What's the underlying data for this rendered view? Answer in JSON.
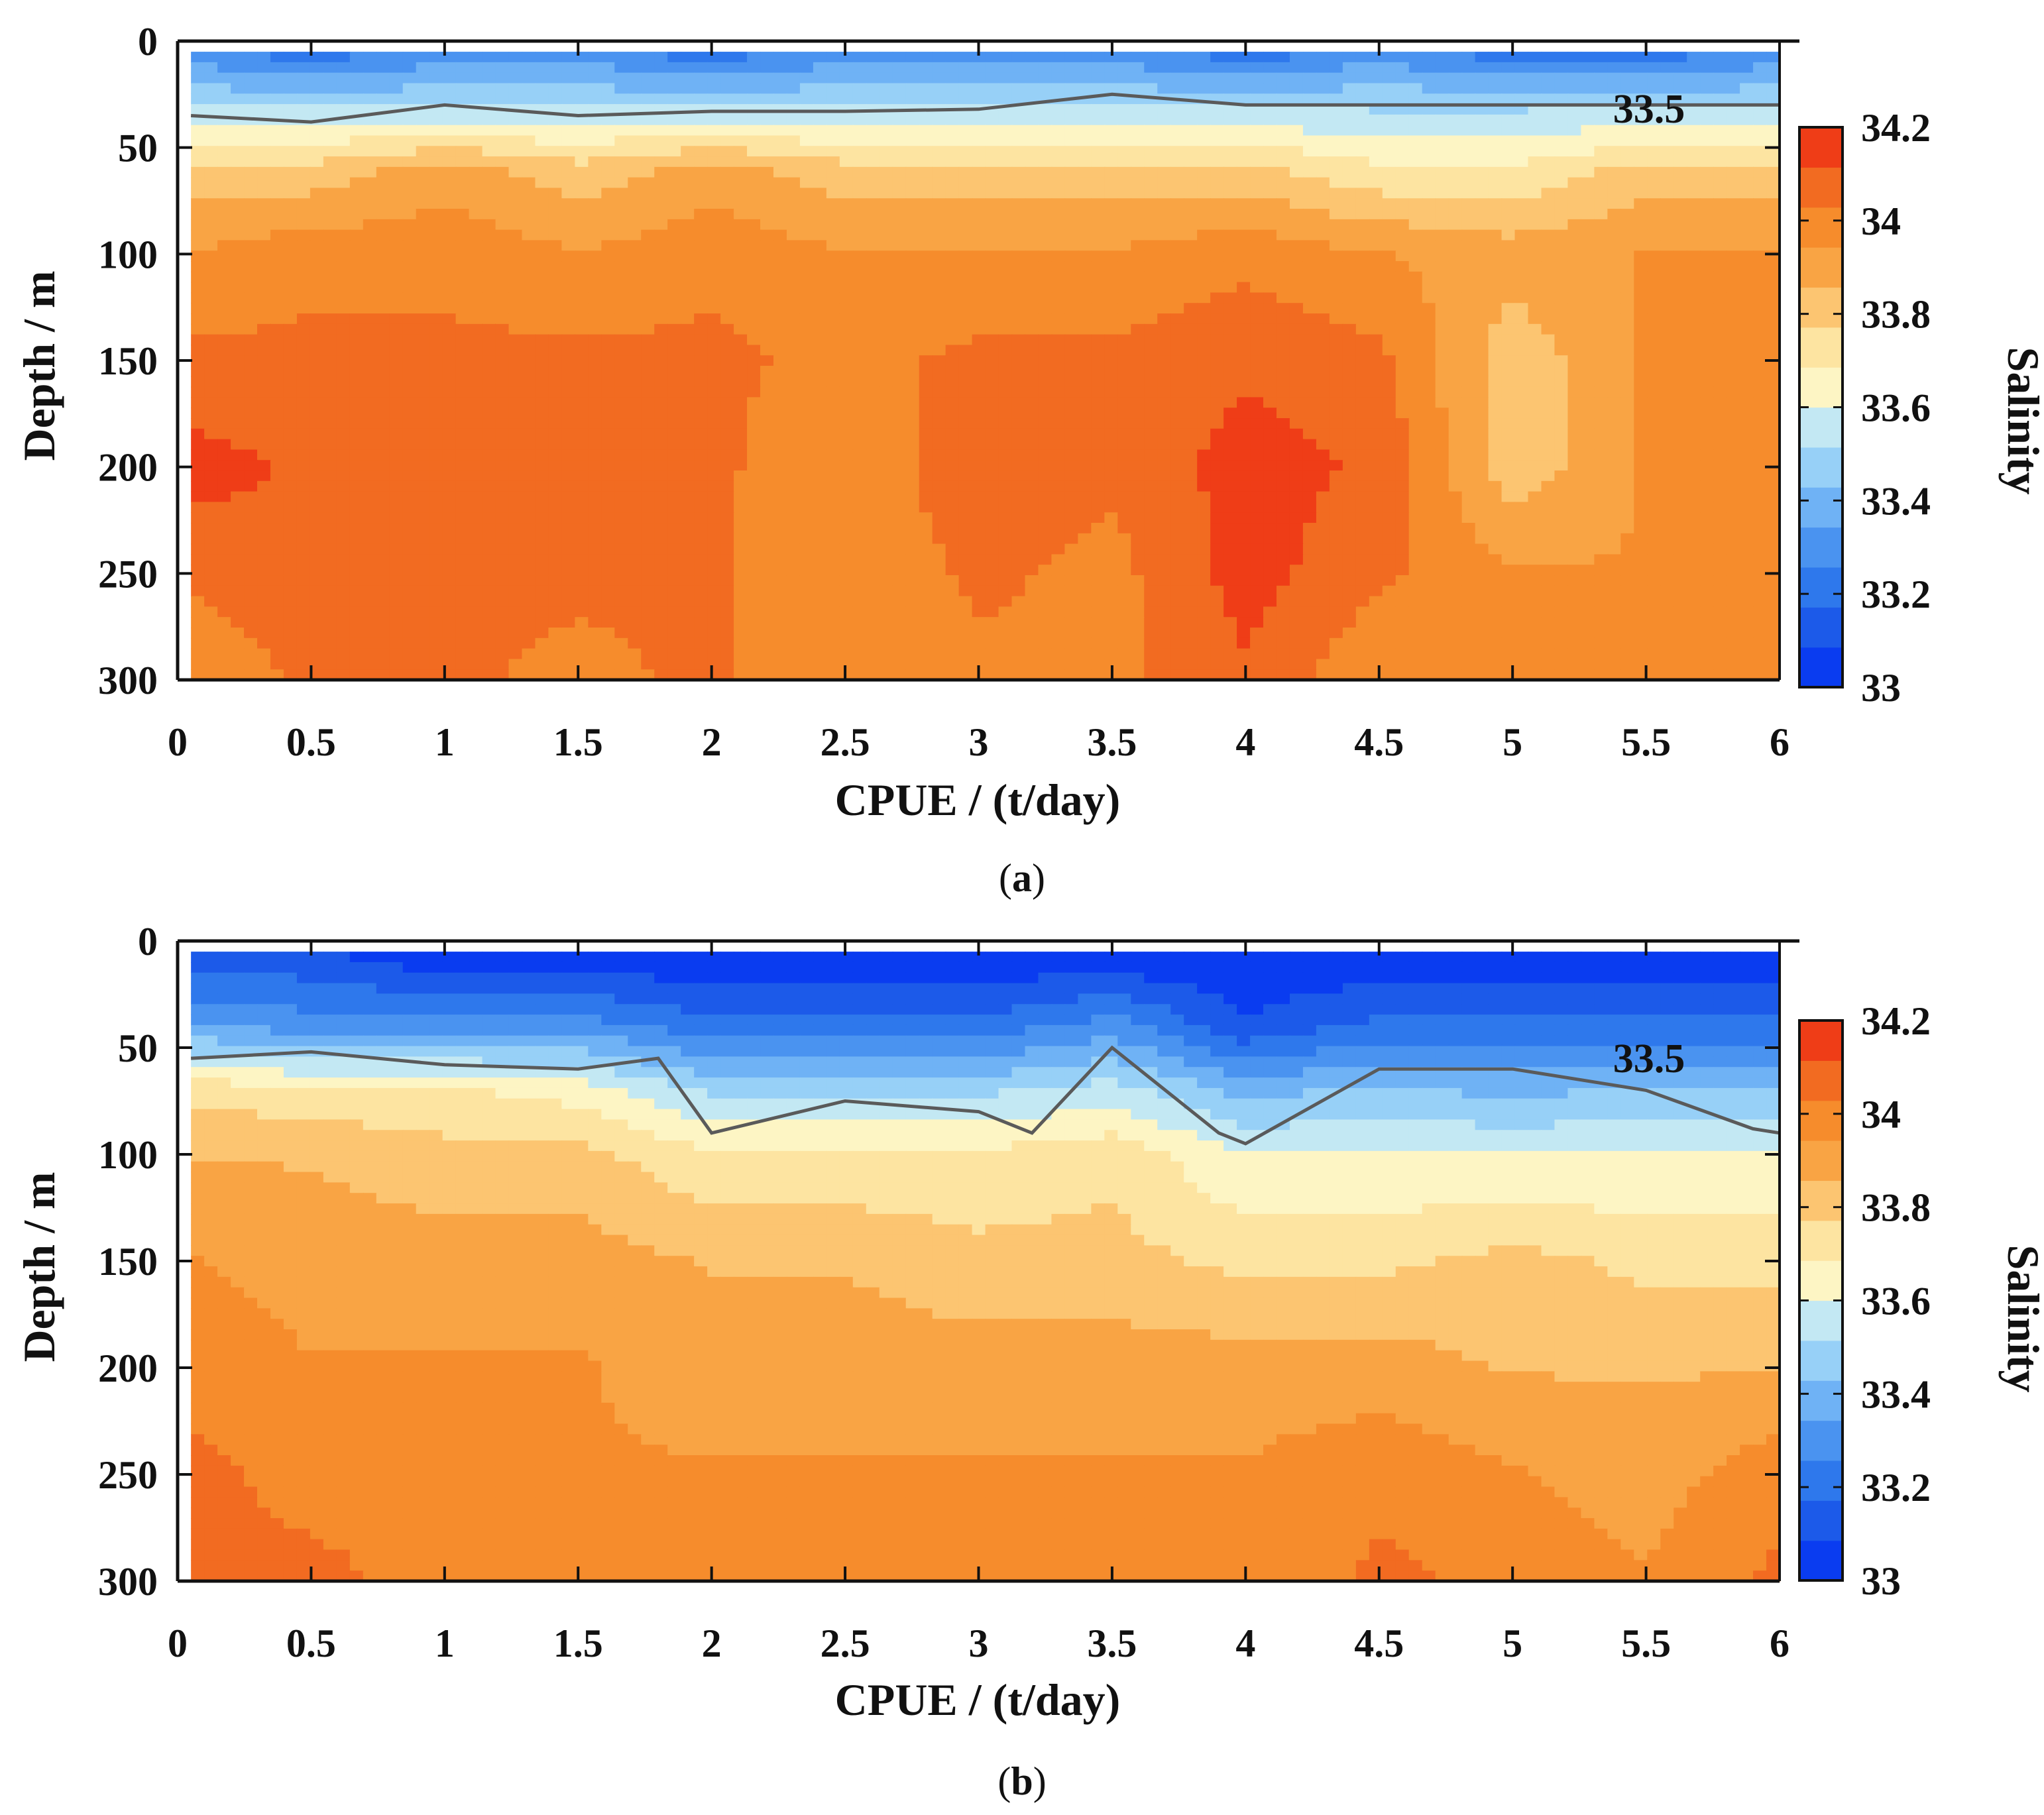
{
  "chart_data": [
    {
      "type": "contourf",
      "panel_label": "a",
      "xlabel": "CPUE / (t/day)",
      "ylabel": "Depth / m",
      "xlim": [
        0,
        6
      ],
      "ylim": [
        0,
        300
      ],
      "y_reversed": true,
      "xticks": [
        "0",
        "0.5",
        "1",
        "1.5",
        "2",
        "2.5",
        "3",
        "3.5",
        "4",
        "4.5",
        "5",
        "5.5",
        "6"
      ],
      "yticks": [
        "0",
        "50",
        "100",
        "150",
        "200",
        "250",
        "300"
      ],
      "colorbar": {
        "label": "Salinity",
        "range": [
          33,
          34.2
        ],
        "ticks": [
          "33",
          "33.2",
          "33.4",
          "33.6",
          "33.8",
          "34",
          "34.2"
        ]
      },
      "contour_line": {
        "level_label": "33.5",
        "x": [
          0.05,
          0.5,
          1.0,
          1.5,
          2.0,
          2.5,
          3.0,
          3.5,
          4.0,
          4.5,
          5.0,
          5.5,
          6.0
        ],
        "depth": [
          35,
          38,
          30,
          35,
          33,
          33,
          32,
          25,
          30,
          30,
          30,
          30,
          30
        ]
      },
      "depth_grid": [
        5,
        30,
        60,
        100,
        150,
        200,
        250,
        300
      ],
      "x_grid": [
        0.05,
        0.5,
        1.0,
        1.5,
        2.0,
        2.5,
        3.0,
        3.5,
        4.0,
        4.5,
        5.0,
        5.5,
        6.0
      ],
      "salinity": [
        [
          33.3,
          33.2,
          33.3,
          33.3,
          33.2,
          33.3,
          33.3,
          33.3,
          33.2,
          33.3,
          33.2,
          33.2,
          33.3
        ],
        [
          33.5,
          33.5,
          33.5,
          33.5,
          33.5,
          33.5,
          33.5,
          33.5,
          33.5,
          33.5,
          33.5,
          33.5,
          33.5
        ],
        [
          33.8,
          33.8,
          33.9,
          33.8,
          33.9,
          33.8,
          33.8,
          33.8,
          33.8,
          33.7,
          33.7,
          33.8,
          33.8
        ],
        [
          33.95,
          34.0,
          34.0,
          33.95,
          34.0,
          33.95,
          33.95,
          33.95,
          34.0,
          33.95,
          33.9,
          33.95,
          33.95
        ],
        [
          34.05,
          34.05,
          34.05,
          34.05,
          34.05,
          34.0,
          34.05,
          34.05,
          34.1,
          34.05,
          33.8,
          33.95,
          33.95
        ],
        [
          34.15,
          34.1,
          34.05,
          34.05,
          34.05,
          33.95,
          34.1,
          34.05,
          34.15,
          34.1,
          33.8,
          33.95,
          33.95
        ],
        [
          34.05,
          34.1,
          34.05,
          34.05,
          34.05,
          33.95,
          34.05,
          34.0,
          34.15,
          34.05,
          33.95,
          33.95,
          33.95
        ],
        [
          33.95,
          34.05,
          34.05,
          34.0,
          34.05,
          33.95,
          34.0,
          34.0,
          34.1,
          33.95,
          33.95,
          33.95,
          33.95
        ]
      ]
    },
    {
      "type": "contourf",
      "panel_label": "b",
      "xlabel": "CPUE / (t/day)",
      "ylabel": "Depth / m",
      "xlim": [
        0,
        6
      ],
      "ylim": [
        0,
        300
      ],
      "y_reversed": true,
      "xticks": [
        "0",
        "0.5",
        "1",
        "1.5",
        "2",
        "2.5",
        "3",
        "3.5",
        "4",
        "4.5",
        "5",
        "5.5",
        "6"
      ],
      "yticks": [
        "0",
        "50",
        "100",
        "150",
        "200",
        "250",
        "300"
      ],
      "colorbar": {
        "label": "Salinity",
        "range": [
          33,
          34.2
        ],
        "ticks": [
          "33",
          "33.2",
          "33.4",
          "33.6",
          "33.8",
          "34",
          "34.2"
        ]
      },
      "contour_line": {
        "level_label": "33.5",
        "x": [
          0.05,
          0.5,
          1.0,
          1.5,
          1.8,
          2.0,
          2.5,
          3.0,
          3.2,
          3.5,
          3.9,
          4.0,
          4.5,
          5.0,
          5.5,
          5.9,
          6.0
        ],
        "depth": [
          55,
          52,
          58,
          60,
          55,
          90,
          75,
          80,
          90,
          50,
          90,
          95,
          60,
          60,
          70,
          88,
          90
        ]
      },
      "depth_grid": [
        5,
        40,
        70,
        100,
        150,
        200,
        250,
        300
      ],
      "x_grid": [
        0.05,
        0.5,
        1.0,
        1.5,
        2.0,
        2.5,
        3.0,
        3.5,
        4.0,
        4.5,
        5.0,
        5.5,
        6.0
      ],
      "salinity": [
        [
          33.1,
          33.1,
          33.0,
          33.0,
          33.0,
          33.0,
          33.0,
          33.0,
          33.0,
          33.0,
          33.0,
          33.0,
          33.0
        ],
        [
          33.35,
          33.3,
          33.3,
          33.3,
          33.2,
          33.2,
          33.2,
          33.3,
          33.1,
          33.2,
          33.2,
          33.2,
          33.2
        ],
        [
          33.75,
          33.7,
          33.7,
          33.65,
          33.5,
          33.5,
          33.5,
          33.55,
          33.4,
          33.45,
          33.4,
          33.45,
          33.45
        ],
        [
          33.85,
          33.85,
          33.8,
          33.8,
          33.7,
          33.7,
          33.7,
          33.75,
          33.6,
          33.6,
          33.6,
          33.6,
          33.6
        ],
        [
          33.95,
          33.9,
          33.9,
          33.9,
          33.85,
          33.85,
          33.8,
          33.8,
          33.75,
          33.75,
          33.8,
          33.75,
          33.75
        ],
        [
          34.0,
          33.95,
          33.95,
          33.95,
          33.9,
          33.9,
          33.9,
          33.9,
          33.9,
          33.9,
          33.85,
          33.85,
          33.85
        ],
        [
          34.05,
          34.0,
          34.0,
          33.95,
          33.95,
          33.95,
          33.95,
          33.95,
          33.95,
          34.0,
          33.95,
          33.9,
          34.0
        ],
        [
          34.05,
          34.05,
          34.0,
          33.95,
          33.95,
          33.95,
          33.95,
          33.95,
          33.95,
          34.05,
          34.0,
          33.95,
          34.05
        ]
      ]
    }
  ],
  "colors": {
    "colormap": [
      "#0a3cf0",
      "#1c5ae9",
      "#2e78ec",
      "#4a93f0",
      "#6fb2f5",
      "#97d0f7",
      "#c3e8f3",
      "#fdf5c4",
      "#fde4a1",
      "#fcc571",
      "#f9a444",
      "#f68c2c",
      "#f26b21",
      "#ef3d17"
    ],
    "contour_line": "#5a5a5a",
    "axis": "#111111"
  },
  "captions": [
    {
      "open": "(",
      "letter": "a",
      "close": ")"
    },
    {
      "open": "(",
      "letter": "b",
      "close": ")"
    }
  ]
}
